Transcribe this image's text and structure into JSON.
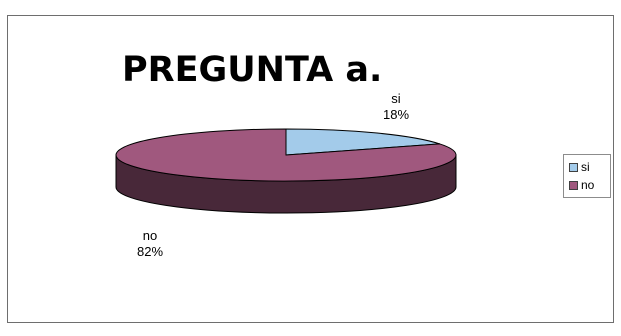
{
  "chart_data": {
    "type": "pie",
    "title": "PREGUNTA a.",
    "slices": [
      {
        "label": "si",
        "value": 18,
        "percent_label": "18%",
        "color": "#a3cbea"
      },
      {
        "label": "no",
        "value": 82,
        "percent_label": "82%",
        "color": "#a0587e"
      }
    ],
    "style": "3d",
    "legend": {
      "placement": "right",
      "entries": [
        "si",
        "no"
      ]
    }
  }
}
